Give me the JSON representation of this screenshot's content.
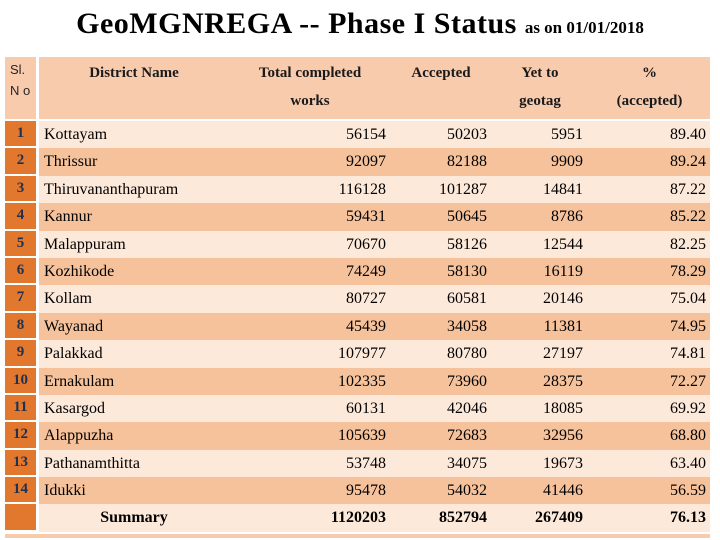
{
  "slide": {
    "title_main": "GeoMGNREGA -- Phase I Status",
    "title_suffix": "as on  01/01/2018"
  },
  "table": {
    "headers": {
      "sl_no": "Sl. N o",
      "district": "District Name",
      "total": "Total completed works",
      "accepted": "Accepted",
      "yet_to": "Yet to geotag",
      "pct": "% (accepted)"
    },
    "rows": [
      {
        "no": "1",
        "district": "Kottayam",
        "total": "56154",
        "accepted": "50203",
        "yet": "5951",
        "pct": "89.40"
      },
      {
        "no": "2",
        "district": "Thrissur",
        "total": "92097",
        "accepted": "82188",
        "yet": "9909",
        "pct": "89.24"
      },
      {
        "no": "3",
        "district": "Thiruvananthapuram",
        "total": "116128",
        "accepted": "101287",
        "yet": "14841",
        "pct": "87.22"
      },
      {
        "no": "4",
        "district": "Kannur",
        "total": "59431",
        "accepted": "50645",
        "yet": "8786",
        "pct": "85.22"
      },
      {
        "no": "5",
        "district": "Malappuram",
        "total": "70670",
        "accepted": "58126",
        "yet": "12544",
        "pct": "82.25"
      },
      {
        "no": "6",
        "district": "Kozhikode",
        "total": "74249",
        "accepted": "58130",
        "yet": "16119",
        "pct": "78.29"
      },
      {
        "no": "7",
        "district": "Kollam",
        "total": "80727",
        "accepted": "60581",
        "yet": "20146",
        "pct": "75.04"
      },
      {
        "no": "8",
        "district": "Wayanad",
        "total": "45439",
        "accepted": "34058",
        "yet": "11381",
        "pct": "74.95"
      },
      {
        "no": "9",
        "district": "Palakkad",
        "total": "107977",
        "accepted": "80780",
        "yet": "27197",
        "pct": "74.81"
      },
      {
        "no": "10",
        "district": "Ernakulam",
        "total": "102335",
        "accepted": "73960",
        "yet": "28375",
        "pct": "72.27"
      },
      {
        "no": "11",
        "district": "Kasargod",
        "total": "60131",
        "accepted": "42046",
        "yet": "18085",
        "pct": "69.92"
      },
      {
        "no": "12",
        "district": "Alappuzha",
        "total": "105639",
        "accepted": "72683",
        "yet": "32956",
        "pct": "68.80"
      },
      {
        "no": "13",
        "district": "Pathanamthitta",
        "total": "53748",
        "accepted": "34075",
        "yet": "19673",
        "pct": "63.40"
      },
      {
        "no": "14",
        "district": "Idukki",
        "total": "95478",
        "accepted": "54032",
        "yet": "41446",
        "pct": "56.59"
      }
    ],
    "summary": {
      "label": "Summary",
      "total": "1120203",
      "accepted": "852794",
      "yet": "267409",
      "pct": "76.13"
    },
    "colors": {
      "accent_orange": "#E2772E",
      "header_bg": "#F8CBAD",
      "band_light": "#FDE9DA",
      "band_dark": "#F6C29B"
    }
  }
}
